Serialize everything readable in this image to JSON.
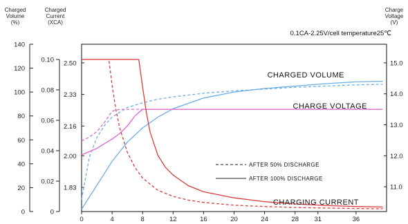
{
  "chart_data": {
    "type": "line",
    "condition_text": "0.1CA-2.25V/cell   temperature25℃",
    "axes": {
      "volume": {
        "title_lines": [
          "Charged",
          "Volume",
          "(%)"
        ],
        "range": [
          0,
          140
        ],
        "ticks": [
          "0",
          "20",
          "40",
          "60",
          "80",
          "100",
          "120",
          "140"
        ]
      },
      "current": {
        "title_lines": [
          "Charged",
          "Current",
          "(XCA)"
        ],
        "range": [
          0,
          0.11
        ],
        "ticks": [
          "0",
          "0.02",
          "0.04",
          "0.06",
          "0.08",
          "0.10"
        ]
      },
      "cell_voltage": {
        "range": [
          1.7,
          2.6
        ],
        "ticks": [
          "1.83",
          "2.00",
          "2.16",
          "2.33",
          "2.50"
        ]
      },
      "voltage": {
        "title_lines": [
          "Charge",
          "Voltage",
          "(V)"
        ],
        "range": [
          10.2,
          15.6
        ],
        "ticks": [
          "11.0",
          "12.0",
          "13.0",
          "14.0",
          "15.0"
        ]
      },
      "x": {
        "range": [
          0,
          40
        ],
        "ticks": [
          "0",
          "4",
          "8",
          "12",
          "16",
          "20",
          "24",
          "28",
          "31",
          "36"
        ]
      }
    },
    "annotations": {
      "volume": "CHARGED VOLUME",
      "voltage": "CHARGE VOLTAGE",
      "current": "CHARGING CURRENT"
    },
    "legend": {
      "dashed": "AFTER 50% DISCHARGE",
      "solid": "AFTER 100% DISCHARGE"
    },
    "colors": {
      "volume": "#6aaee8",
      "voltage": "#d866d0",
      "current": "#d93a3a",
      "frame": "#222222"
    },
    "series": [
      {
        "annotation": "volume",
        "style": "solid",
        "axis": "volume",
        "x": [
          0,
          2,
          4,
          6,
          8,
          10,
          12,
          16,
          20,
          24,
          28,
          32,
          36,
          39.5
        ],
        "y": [
          2,
          22,
          42,
          58,
          70,
          79,
          86,
          95,
          100,
          103,
          105,
          107,
          108.5,
          109
        ]
      },
      {
        "annotation": "volume",
        "style": "dashed",
        "axis": "volume",
        "x": [
          0,
          1,
          2,
          3,
          4,
          6,
          8,
          10,
          12,
          16,
          20,
          24,
          28,
          32,
          36,
          39.5
        ],
        "y": [
          10,
          45,
          62,
          72,
          79,
          87,
          91,
          94,
          96,
          99,
          101,
          102.5,
          104,
          105,
          106,
          106.5
        ]
      },
      {
        "annotation": "voltage",
        "style": "solid",
        "axis": "cell_voltage",
        "x": [
          0,
          2,
          4,
          5,
          6,
          7,
          8,
          10,
          20,
          30,
          39.5
        ],
        "y": [
          2.005,
          2.04,
          2.09,
          2.12,
          2.16,
          2.215,
          2.25,
          2.25,
          2.25,
          2.25,
          2.25
        ]
      },
      {
        "annotation": "voltage",
        "style": "dashed",
        "axis": "cell_voltage",
        "x": [
          0,
          1,
          2,
          3,
          3.6,
          4,
          5,
          10,
          20,
          39.5
        ],
        "y": [
          2.08,
          2.1,
          2.13,
          2.18,
          2.215,
          2.24,
          2.25,
          2.25,
          2.25,
          2.25
        ]
      },
      {
        "annotation": "current",
        "style": "solid",
        "axis": "current",
        "x": [
          0,
          7,
          7.5,
          8,
          8.5,
          9,
          10,
          11,
          12,
          14,
          16,
          20,
          24,
          28,
          32,
          36,
          39.5
        ],
        "y": [
          0.1,
          0.1,
          0.1,
          0.082,
          0.065,
          0.052,
          0.037,
          0.029,
          0.024,
          0.017,
          0.013,
          0.009,
          0.0065,
          0.005,
          0.004,
          0.0033,
          0.003
        ]
      },
      {
        "annotation": "current",
        "style": "dashed",
        "axis": "current",
        "x": [
          3.6,
          4,
          4.5,
          5,
          6,
          7,
          8,
          10,
          12,
          14,
          16,
          20,
          24,
          28,
          32,
          36,
          39.5
        ],
        "y": [
          0.099,
          0.083,
          0.067,
          0.055,
          0.039,
          0.029,
          0.022,
          0.014,
          0.01,
          0.0075,
          0.006,
          0.0042,
          0.0033,
          0.0027,
          0.0023,
          0.002,
          0.0018
        ]
      }
    ]
  }
}
